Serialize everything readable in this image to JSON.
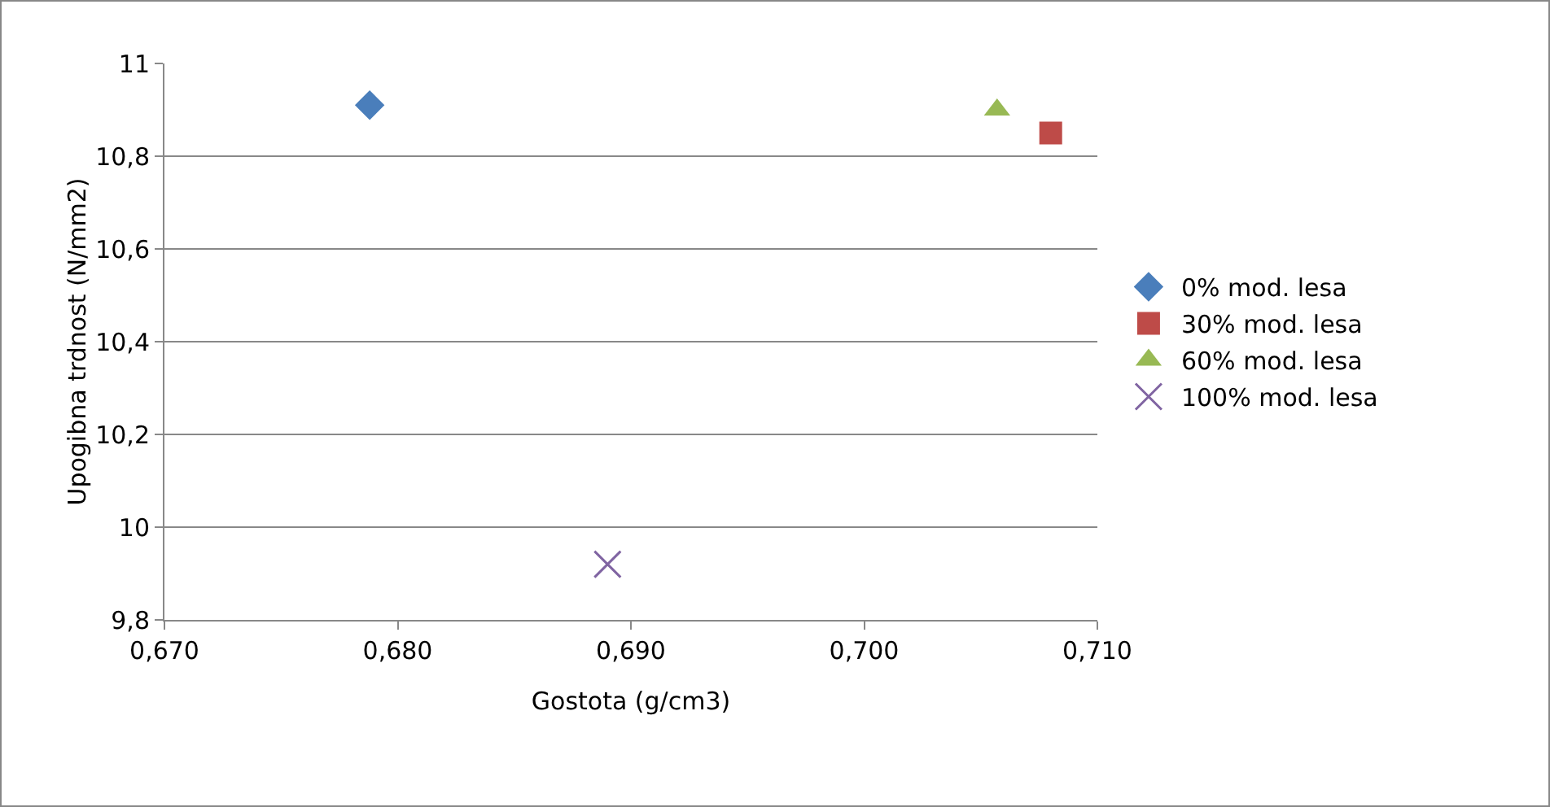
{
  "chart_data": {
    "type": "scatter",
    "xlabel": "Gostota (g/cm3)",
    "ylabel": "Upogibna trdnost (N/mm2)",
    "xlim": [
      0.67,
      0.71
    ],
    "xticks": [
      {
        "value": 0.67,
        "label": "0,670"
      },
      {
        "value": 0.68,
        "label": "0,680"
      },
      {
        "value": 0.69,
        "label": "0,690"
      },
      {
        "value": 0.7,
        "label": "0,700"
      },
      {
        "value": 0.71,
        "label": "0,710"
      }
    ],
    "ylim": [
      9.8,
      11
    ],
    "yticks": [
      {
        "value": 9.8,
        "label": "9,8"
      },
      10,
      {
        "value": 10.2,
        "label": "10,2"
      },
      {
        "value": 10.4,
        "label": "10,4"
      },
      {
        "value": 10.6,
        "label": "10,6"
      },
      {
        "value": 10.8,
        "label": "10,8"
      },
      11
    ],
    "grid": "y",
    "legend": "right",
    "series": [
      {
        "name": "0% mod. lesa",
        "color": "#4a7ebb",
        "marker": "diamond",
        "x": [
          0.6788
        ],
        "values": [
          10.91
        ]
      },
      {
        "name": "30% mod. lesa",
        "color": "#be4b48",
        "marker": "square",
        "x": [
          0.708
        ],
        "values": [
          10.85
        ]
      },
      {
        "name": "60% mod. lesa",
        "color": "#98b954",
        "marker": "triangle",
        "x": [
          0.7057
        ],
        "values": [
          10.9
        ]
      },
      {
        "name": "100% mod. lesa",
        "color": "#8064a2",
        "marker": "cross",
        "x": [
          0.689
        ],
        "values": [
          9.92
        ]
      }
    ]
  }
}
